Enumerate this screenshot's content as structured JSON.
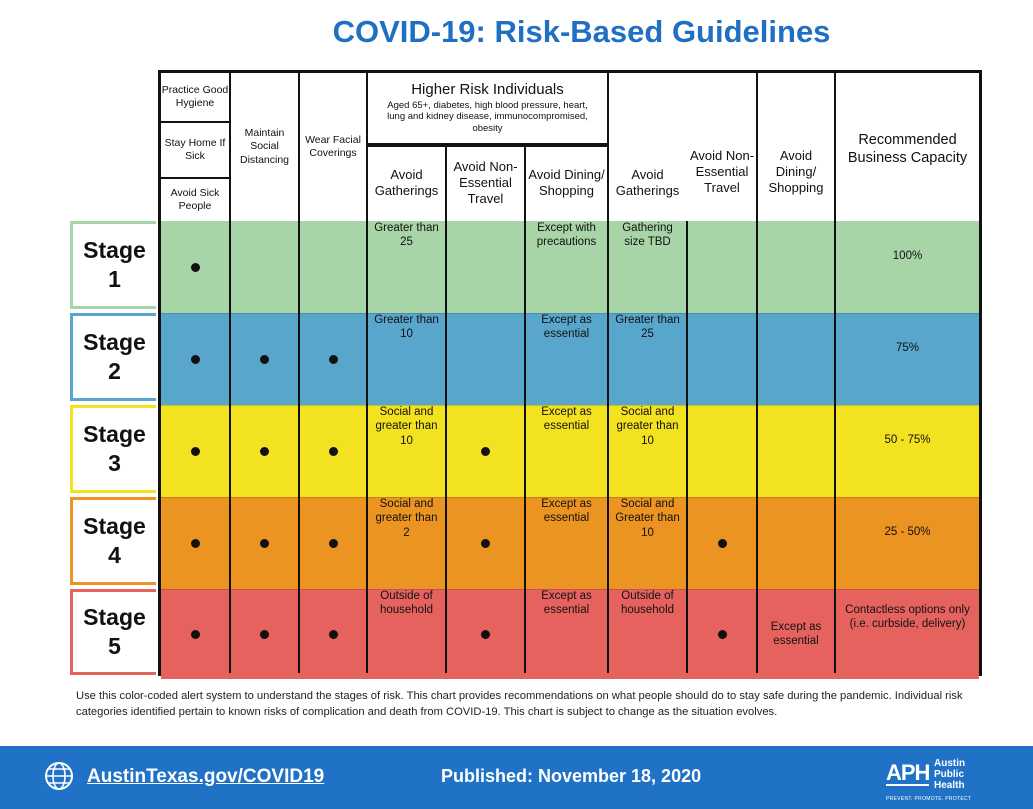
{
  "title": "COVID-19: Risk-Based Guidelines",
  "headers": {
    "hygiene_1": "Practice Good Hygiene",
    "hygiene_2": "Stay Home If Sick",
    "hygiene_3": "Avoid Sick People",
    "distancing": "Maintain Social Distancing",
    "coverings": "Wear Facial Coverings",
    "higher_risk_title": "Higher Risk Individuals",
    "higher_risk_desc": "Aged 65+, diabetes, high blood pressure, heart, lung and kidney disease, immunocompromised, obesity",
    "avoid_gatherings": "Avoid Gatherings",
    "avoid_travel": "Avoid Non-Essential Travel",
    "avoid_dining": "Avoid Dining/ Shopping",
    "capacity": "Recommended Business Capacity"
  },
  "stages": [
    {
      "label": "Stage",
      "number": "1",
      "color": "#a8d5a8",
      "cells": [
        "dot",
        "",
        "",
        "Greater than 25",
        "",
        "Except with precautions",
        "Gathering size TBD",
        "",
        "",
        "100%"
      ]
    },
    {
      "label": "Stage",
      "number": "2",
      "color": "#58a6cb",
      "cells": [
        "dot",
        "dot",
        "dot",
        "Greater than 10",
        "",
        "Except as essential",
        "Greater than 25",
        "",
        "",
        "75%"
      ]
    },
    {
      "label": "Stage",
      "number": "3",
      "color": "#f3e21f",
      "cells": [
        "dot",
        "dot",
        "dot",
        "Social and greater than 10",
        "dot",
        "Except as essential",
        "Social and greater than 10",
        "",
        "",
        "50 - 75%"
      ]
    },
    {
      "label": "Stage",
      "number": "4",
      "color": "#ec9421",
      "cells": [
        "dot",
        "dot",
        "dot",
        "Social and greater than 2",
        "dot",
        "Except as essential",
        "Social and Greater than 10",
        "dot",
        "",
        "25 - 50%"
      ]
    },
    {
      "label": "Stage",
      "number": "5",
      "color": "#e6625f",
      "cells": [
        "dot",
        "dot",
        "dot",
        "Outside of household",
        "dot",
        "Except as essential",
        "Outside of household",
        "dot",
        "Except as essential",
        "Contactless options only (i.e. curbside, delivery)"
      ]
    }
  ],
  "stage_border_colors": [
    "#a8d5a8",
    "#58a6cb",
    "#f3e21f",
    "#ec9421",
    "#e6625f"
  ],
  "note": "Use this color-coded alert system to understand the stages of risk. This chart provides recommendations on what people should do to stay safe during the pandemic. Individual risk categories identified pertain to known risks of complication and death from COVID-19. This chart is subject to change as the situation evolves.",
  "footer": {
    "link": "AustinTexas.gov/COVID19",
    "published": "Published: November 18, 2020",
    "logo_mark": "APH",
    "logo_text_1": "Austin",
    "logo_text_2": "Public",
    "logo_text_3": "Health",
    "logo_tagline": "PREVENT. PROMOTE. PROTECT",
    "icons": {
      "globe": "globe-icon"
    }
  }
}
